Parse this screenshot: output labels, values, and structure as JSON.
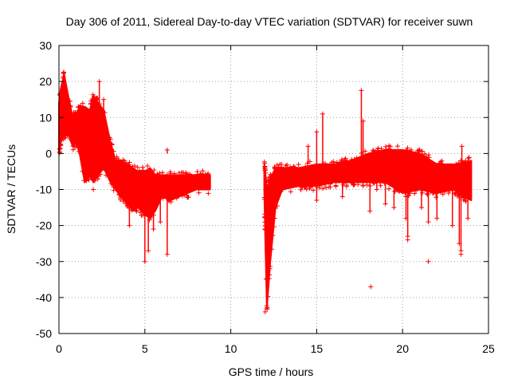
{
  "chart_data": {
    "type": "scatter",
    "title": "Day 306 of 2011, Sidereal Day-to-day VTEC variation (SDTVAR) for receiver suwn",
    "xlabel": "GPS time / hours",
    "ylabel": "SDTVAR / TECUs",
    "xlim": [
      0,
      25
    ],
    "ylim": [
      -50,
      30
    ],
    "xticks": [
      0,
      5,
      10,
      15,
      20,
      25
    ],
    "yticks": [
      -50,
      -40,
      -30,
      -20,
      -10,
      0,
      10,
      20,
      30
    ],
    "grid": true,
    "marker": "+",
    "colors": {
      "series": "#ff0000",
      "axis": "#000000",
      "grid": "#a0a0a0"
    },
    "series": [
      {
        "name": "SDTVAR suwn",
        "envelope": {
          "x": [
            0.0,
            0.1,
            0.3,
            0.5,
            0.8,
            1.0,
            1.2,
            1.5,
            1.8,
            2.0,
            2.3,
            2.6,
            3.0,
            3.3,
            3.6,
            4.0,
            4.3,
            4.6,
            5.0,
            5.3,
            5.6,
            6.0,
            6.5,
            7.0,
            7.5,
            8.0,
            8.5,
            8.8
          ],
          "upper": [
            14,
            18,
            22,
            17,
            10,
            11,
            13,
            13,
            12,
            16,
            14,
            12,
            3,
            -2,
            -2,
            -3,
            -4,
            -5,
            -5,
            -4,
            -6,
            -6,
            -6,
            -6,
            -6,
            -6,
            -6,
            -6
          ],
          "lower": [
            0,
            3,
            5,
            6,
            2,
            3,
            0,
            -8,
            -6,
            -8,
            -6,
            -4,
            -8,
            -10,
            -12,
            -14,
            -16,
            -15,
            -17,
            -18,
            -16,
            -12,
            -13,
            -12,
            -11,
            -10,
            -10,
            -10
          ]
        },
        "envelope2": {
          "x": [
            11.95,
            12.0,
            12.1,
            12.3,
            12.6,
            13.0,
            14.0,
            15.0,
            16.0,
            17.0,
            18.0,
            19.0,
            20.0,
            21.0,
            22.0,
            23.0,
            23.5,
            24.0
          ],
          "upper": [
            -3,
            -5,
            -10,
            -7,
            -4,
            -4,
            -4,
            -3,
            -3,
            -2,
            0,
            1,
            1,
            0,
            -3,
            -3,
            -3,
            -2
          ],
          "lower": [
            -10,
            -22,
            -43,
            -30,
            -15,
            -10,
            -9,
            -9,
            -8,
            -8,
            -8,
            -8,
            -11,
            -10,
            -11,
            -10,
            -12,
            -13
          ]
        },
        "dips": [
          {
            "x": 2.0,
            "y": -10
          },
          {
            "x": 4.1,
            "y": -20
          },
          {
            "x": 4.4,
            "y": -15
          },
          {
            "x": 5.0,
            "y": -30
          },
          {
            "x": 5.2,
            "y": -27
          },
          {
            "x": 5.5,
            "y": -21
          },
          {
            "x": 5.9,
            "y": -19
          },
          {
            "x": 6.3,
            "y": -28
          },
          {
            "x": 15.0,
            "y": -13
          },
          {
            "x": 16.5,
            "y": -12
          },
          {
            "x": 18.1,
            "y": -16
          },
          {
            "x": 18.5,
            "y": -10
          },
          {
            "x": 19.0,
            "y": -14
          },
          {
            "x": 19.5,
            "y": -15
          },
          {
            "x": 20.2,
            "y": -18
          },
          {
            "x": 20.3,
            "y": -23
          },
          {
            "x": 21.1,
            "y": -15
          },
          {
            "x": 21.5,
            "y": -19
          },
          {
            "x": 22.0,
            "y": -18
          },
          {
            "x": 22.9,
            "y": -20
          },
          {
            "x": 23.3,
            "y": -25
          },
          {
            "x": 23.4,
            "y": -27
          },
          {
            "x": 23.8,
            "y": -18
          }
        ],
        "spikes": [
          {
            "x": 2.35,
            "y": 20
          },
          {
            "x": 2.6,
            "y": 15
          },
          {
            "x": 6.3,
            "y": 1
          },
          {
            "x": 14.5,
            "y": 2
          },
          {
            "x": 15.0,
            "y": 6
          },
          {
            "x": 15.35,
            "y": 11
          },
          {
            "x": 17.6,
            "y": 17.5
          },
          {
            "x": 17.7,
            "y": 9
          },
          {
            "x": 20.5,
            "y": 1
          },
          {
            "x": 23.45,
            "y": 2
          }
        ],
        "outliers": [
          {
            "x": 18.15,
            "y": -37
          },
          {
            "x": 21.5,
            "y": -30
          },
          {
            "x": 20.3,
            "y": -24
          },
          {
            "x": 23.4,
            "y": -28
          },
          {
            "x": 12.0,
            "y": -44
          }
        ]
      }
    ]
  }
}
